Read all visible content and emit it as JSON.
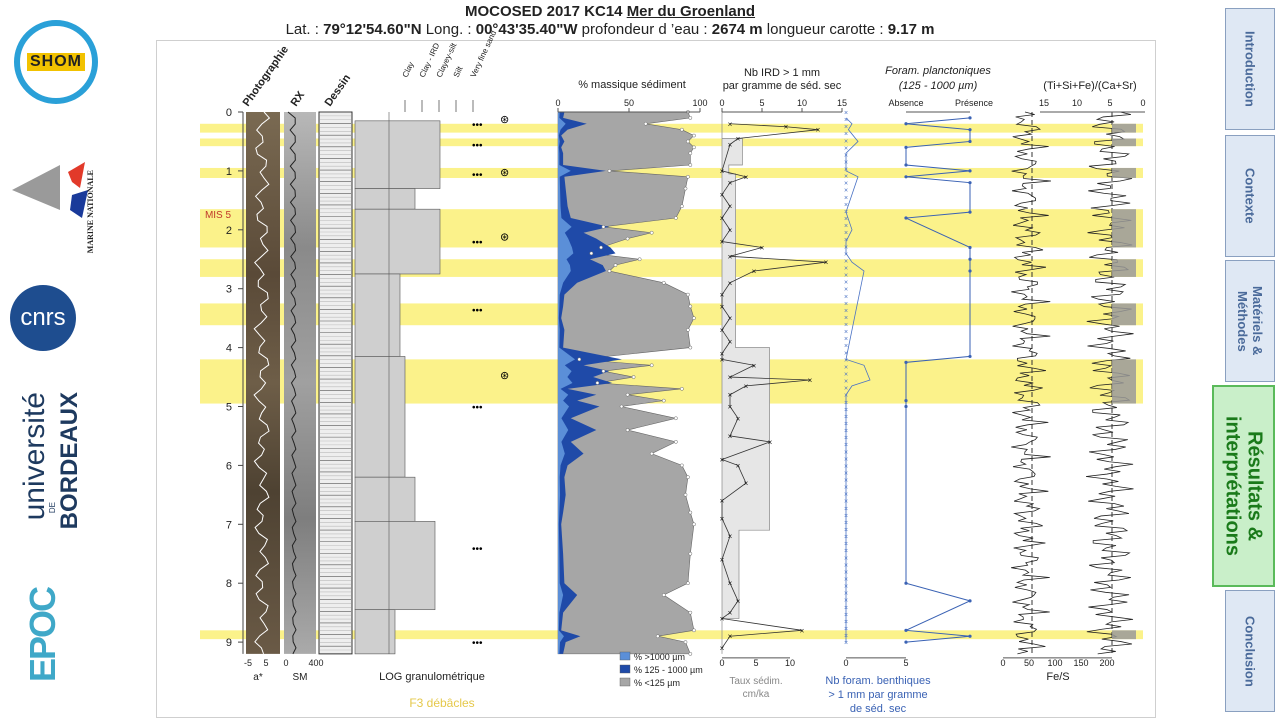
{
  "title": {
    "line1": "MOCOSED 2017 KC14 Mer du Groenland",
    "line2_parts": [
      {
        "text": "Lat. : ",
        "bold": false
      },
      {
        "text": "79°12'54.60\"N",
        "bold": true
      },
      {
        "text": " Long. : ",
        "bold": false
      },
      {
        "text": "00°43'35.40\"W",
        "bold": true
      },
      {
        "text": " profondeur d ’eau : ",
        "bold": false
      },
      {
        "text": "2674 m",
        "bold": true
      },
      {
        "text": " longueur carotte : ",
        "bold": false
      },
      {
        "text": "9.17 m",
        "bold": true
      }
    ],
    "line1_prefix": "MOCOSED 2017 KC14 ",
    "line1_underlined": "Mer du Groenland"
  },
  "logos": {
    "shom": "SHOM",
    "marine": "MARINE NATIONALE",
    "cnrs": "cnrs",
    "bordeaux": "université",
    "bordeaux2": "BORDEAUX",
    "bordeaux_de": "DE",
    "epoc": "EPOC"
  },
  "nav": [
    {
      "label": "Introduction",
      "active": false
    },
    {
      "label": "Contexte",
      "active": false
    },
    {
      "label": "Matériels & Méthodes",
      "active": false
    },
    {
      "label": "Résultats & interprétations",
      "active": true
    },
    {
      "label": "Conclusion",
      "active": false
    }
  ],
  "colors": {
    "yellow_band": "#fbf28a",
    "dark_blue": "#1f4aa8",
    "light_blue": "#5b8fd8",
    "gray_fill": "#a6a6a6",
    "nav_active": "#c9efc9",
    "f3_label": "#e5c84a"
  },
  "chart_data": {
    "type": "line",
    "depth_axis": {
      "ylim": [
        0,
        9.2
      ],
      "ticks": [
        0,
        1,
        2,
        3,
        4,
        5,
        6,
        7,
        8,
        9
      ],
      "mis_label": "MIS 5",
      "mis_depth": 1.95
    },
    "yellow_bands": [
      [
        0.2,
        0.35
      ],
      [
        0.45,
        0.58
      ],
      [
        0.95,
        1.12
      ],
      [
        1.65,
        2.3
      ],
      [
        2.5,
        2.8
      ],
      [
        3.25,
        3.62
      ],
      [
        4.2,
        4.95
      ],
      [
        8.8,
        8.95
      ]
    ],
    "columns": {
      "photographie": "Photographie",
      "rx": "RX",
      "dessin": "Dessin",
      "log_label": "LOG granulométrique",
      "log_ticks": [
        "Clay",
        "Clay - IRD",
        "Clayey-silt",
        "Silt",
        "Very fine sand"
      ],
      "a_star": {
        "label": "a*",
        "ticks": [
          "-5",
          "5"
        ]
      },
      "sm": {
        "label": "SM",
        "ticks": [
          "0",
          "400"
        ]
      }
    },
    "f3_label": "F3 débâcles",
    "mass_pct": {
      "header": "% massique sédiment",
      "xlim": [
        0,
        100
      ],
      "ticks": [
        "0",
        "50",
        "100"
      ],
      "legend": [
        "% >1000 µm",
        "% 125 - 1000 µm",
        "% <125 µm"
      ],
      "depth": [
        0.0,
        0.1,
        0.2,
        0.3,
        0.4,
        0.5,
        0.6,
        0.7,
        0.9,
        1.0,
        1.1,
        1.3,
        1.6,
        1.8,
        1.95,
        2.05,
        2.15,
        2.3,
        2.4,
        2.5,
        2.6,
        2.7,
        2.9,
        3.1,
        3.3,
        3.5,
        3.7,
        4.0,
        4.2,
        4.3,
        4.4,
        4.5,
        4.6,
        4.7,
        4.8,
        4.9,
        5.0,
        5.2,
        5.4,
        5.6,
        5.8,
        6.0,
        6.2,
        6.5,
        6.8,
        7.0,
        7.5,
        8.0,
        8.2,
        8.5,
        8.8,
        8.9,
        9.0,
        9.2
      ],
      "lt125": [
        90,
        92,
        55,
        85,
        95,
        90,
        95,
        92,
        92,
        25,
        90,
        88,
        85,
        80,
        20,
        60,
        40,
        18,
        10,
        50,
        30,
        25,
        70,
        90,
        92,
        95,
        90,
        92,
        0,
        60,
        20,
        45,
        15,
        85,
        40,
        70,
        35,
        80,
        40,
        80,
        60,
        85,
        90,
        88,
        92,
        95,
        92,
        90,
        70,
        92,
        95,
        65,
        88,
        92
      ]
    },
    "ird": {
      "header_l1": "Nb IRD > 1 mm",
      "header_l2": "par gramme de séd. sec",
      "xlim": [
        0,
        15
      ],
      "ticks": [
        "0",
        "5",
        "10",
        "15"
      ],
      "depth": [
        0.2,
        0.25,
        0.3,
        0.45,
        0.55,
        1.0,
        1.1,
        1.2,
        1.4,
        1.6,
        1.8,
        2.0,
        2.2,
        2.3,
        2.45,
        2.55,
        2.7,
        2.9,
        3.1,
        3.3,
        3.5,
        3.7,
        3.9,
        4.1,
        4.2,
        4.3,
        4.5,
        4.55,
        4.65,
        4.8,
        5.0,
        5.2,
        5.5,
        5.6,
        5.9,
        6.0,
        6.3,
        6.6,
        6.9,
        7.2,
        7.6,
        8.0,
        8.3,
        8.5,
        8.6,
        8.8,
        8.9,
        9.1
      ],
      "values": [
        1,
        8,
        12,
        2,
        1,
        0,
        3,
        1,
        0,
        1,
        0,
        1,
        0,
        5,
        1,
        13,
        4,
        1,
        0,
        0,
        1,
        0,
        1,
        0,
        0,
        4,
        1,
        11,
        3,
        1,
        1,
        2,
        1,
        6,
        0,
        2,
        3,
        0,
        0,
        1,
        0,
        1,
        2,
        1,
        0,
        10,
        1,
        0
      ]
    },
    "sed_rate": {
      "label_l1": "Taux sédim.",
      "label_l2": "cm/ka",
      "xlim": [
        0,
        10
      ],
      "ticks": [
        "0",
        "5",
        "10"
      ],
      "steps": [
        [
          0,
          0.45,
          0
        ],
        [
          0.45,
          0.9,
          3
        ],
        [
          0.9,
          1.05,
          1
        ],
        [
          1.05,
          4.0,
          2
        ],
        [
          4.0,
          7.1,
          7
        ],
        [
          7.1,
          8.6,
          2.5
        ],
        [
          8.6,
          9.2,
          0
        ]
      ]
    },
    "benthic": {
      "label_l1": "Nb foram. benthiques",
      "label_l2": "> 1 mm par gramme",
      "label_l3": "de séd. sec",
      "xlim": [
        0,
        5
      ],
      "ticks": [
        "0",
        "5"
      ],
      "depth": [
        0.1,
        0.2,
        0.3,
        0.5,
        0.7,
        1.0,
        1.1,
        1.7,
        2.0,
        2.2,
        2.4,
        2.55,
        2.7,
        4.2,
        4.3,
        4.55,
        4.65,
        4.8,
        5.0,
        9.0
      ],
      "values": [
        0,
        0.5,
        0.2,
        1,
        0,
        0,
        1,
        0,
        0.5,
        0,
        0,
        0.5,
        1.5,
        0,
        1.5,
        2,
        0.5,
        0,
        0,
        0
      ]
    },
    "plankton": {
      "header_l1": "Foram. planctoniques",
      "header_l2": "(125 - 1000 µm)",
      "labels": [
        "Absence",
        "Présence"
      ],
      "depth": [
        0.1,
        0.2,
        0.3,
        0.5,
        0.6,
        0.9,
        1.0,
        1.1,
        1.2,
        1.7,
        1.8,
        2.3,
        2.5,
        2.7,
        4.15,
        4.25,
        4.9,
        5.0,
        8.0,
        8.3,
        8.8,
        8.9,
        9.0
      ],
      "values": [
        1,
        0,
        1,
        1,
        0,
        0,
        1,
        0,
        1,
        1,
        0,
        1,
        1,
        1,
        1,
        0,
        0,
        0,
        0,
        1,
        0,
        1,
        0
      ]
    },
    "xrf": {
      "header": "(Ti+Si+Fe)/(Ca+Sr)",
      "ticks": [
        "15",
        "10",
        "5",
        "0"
      ],
      "fes_label": "Fe/S",
      "fes_ticks": [
        "0",
        "50",
        "100",
        "150",
        "200"
      ]
    }
  }
}
